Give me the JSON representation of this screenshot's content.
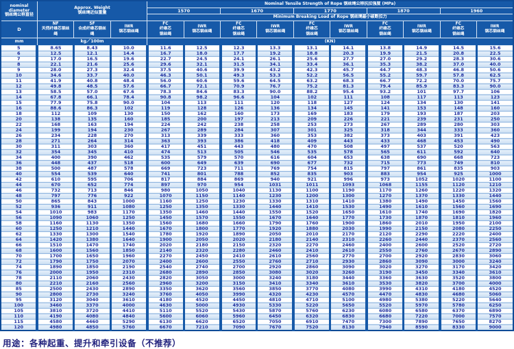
{
  "header": {
    "nominal_diameter": "nominal\ndiameter\n钢丝绳公称直径",
    "approx_weight": "Approx. Weight\n钢丝绳近似重量",
    "tensile_title": "Nominal Tensile Strength of Rope 钢丝绳公称抗拉强度 (MPa)",
    "breaking_title": "Minimum Breaking Load of Rope 钢丝绳最小破断拉力",
    "strengths": [
      "1570",
      "1670",
      "1770",
      "1870",
      "1960"
    ],
    "sub_columns": [
      {
        "en": "D",
        "cn": ""
      },
      {
        "en": "NF",
        "cn": "天然纤维芯钢丝\n绳"
      },
      {
        "en": "SF",
        "cn": "合成纤维芯钢丝\n绳"
      },
      {
        "en": "IWR",
        "cn": "钢芯钢丝绳"
      },
      {
        "en": "FC",
        "cn": "纤维芯\n钢丝绳"
      },
      {
        "en": "IWR",
        "cn": "钢芯钢丝绳"
      },
      {
        "en": "FC",
        "cn": "纤维芯\n钢丝绳"
      },
      {
        "en": "IWR",
        "cn": "钢芯钢丝绳"
      },
      {
        "en": "FC",
        "cn": "纤维芯\n钢丝绳"
      },
      {
        "en": "IWR",
        "cn": "钢芯钢丝绳"
      },
      {
        "en": "FC",
        "cn": "纤维芯\n钢丝绳"
      },
      {
        "en": "IWR",
        "cn": "钢芯钢丝绳"
      },
      {
        "en": "FC",
        "cn": "纤维芯\n钢丝绳"
      },
      {
        "en": "IWR",
        "cn": "钢芯钢丝绳"
      }
    ],
    "units": {
      "mm": "mm",
      "kg": "kg／100m",
      "kn": "(KN)"
    }
  },
  "colors": {
    "header_blue": "#1659A8",
    "frame_blue": "#0F4C97",
    "row_tint": "#C9DEF2",
    "value_text": "#1A2B9E",
    "footer_text": "#23237E"
  },
  "footer": {
    "usage": "用途：各种起重、提升和牵引设备（不推荐）"
  },
  "table": {
    "rows": [
      [
        "5",
        "8.65",
        "8.43",
        "10.0",
        "11.6",
        "12.5",
        "12.3",
        "13.3",
        "13.1",
        "14.1",
        "13.8",
        "14.9",
        "14.5",
        "15.6"
      ],
      [
        "6",
        "12.5",
        "12.1",
        "14.4",
        "16.7",
        "18.0",
        "17.7",
        "19.2",
        "18.8",
        "20.3",
        "19.9",
        "21.5",
        "20.8",
        "22.5"
      ],
      [
        "7",
        "17.0",
        "16.5",
        "19.6",
        "22.7",
        "24.5",
        "24.1",
        "26.1",
        "25.6",
        "27.7",
        "27.0",
        "29.2",
        "28.3",
        "30.6"
      ],
      [
        "8",
        "22.1",
        "21.6",
        "25.6",
        "29.6",
        "32.1",
        "31.5",
        "34.1",
        "33.4",
        "36.1",
        "35.3",
        "38.2",
        "37.0",
        "40.0"
      ],
      [
        "9",
        "28.0",
        "27.3",
        "32.4",
        "37.5",
        "40.6",
        "39.9",
        "43.2",
        "42.3",
        "45.7",
        "44.7",
        "48.3",
        "46.8",
        "50.6"
      ],
      [
        "10",
        "34.6",
        "33.7",
        "40.0",
        "46.3",
        "50.1",
        "49.3",
        "53.3",
        "52.2",
        "56.5",
        "55.2",
        "59.7",
        "57.8",
        "62.5"
      ],
      [
        "11",
        "41.9",
        "40.8",
        "48.4",
        "56.0",
        "60.6",
        "59.6",
        "64.5",
        "63.2",
        "68.3",
        "66.7",
        "72.2",
        "70.0",
        "75.7"
      ],
      [
        "12",
        "49.8",
        "48.5",
        "57.6",
        "66.7",
        "72.1",
        "70.9",
        "76.7",
        "75.2",
        "81.3",
        "79.4",
        "85.9",
        "83.3",
        "90.0"
      ],
      [
        "13",
        "58.5",
        "57.0",
        "67.6",
        "78.3",
        "84.6",
        "83.3",
        "90.0",
        "88.2",
        "95.4",
        "93.2",
        "101",
        "97.7",
        "106"
      ],
      [
        "14",
        "67.8",
        "66.1",
        "78.4",
        "90.8",
        "98.2",
        "96.6",
        "104",
        "102",
        "111",
        "108",
        "117",
        "113",
        "123"
      ],
      [
        "15",
        "77.9",
        "75.8",
        "90.0",
        "104",
        "113",
        "111",
        "120",
        "118",
        "127",
        "124",
        "134",
        "130",
        "141"
      ],
      [
        "16",
        "88.6",
        "86.3",
        "102",
        "119",
        "128",
        "126",
        "136",
        "134",
        "145",
        "141",
        "153",
        "148",
        "160"
      ],
      [
        "18",
        "112",
        "109",
        "130",
        "150",
        "162",
        "160",
        "173",
        "169",
        "183",
        "179",
        "193",
        "187",
        "203"
      ],
      [
        "20",
        "138",
        "135",
        "160",
        "185",
        "200",
        "197",
        "213",
        "209",
        "226",
        "221",
        "239",
        "231",
        "250"
      ],
      [
        "22",
        "168",
        "163",
        "194",
        "224",
        "242",
        "238",
        "258",
        "253",
        "273",
        "267",
        "289",
        "280",
        "303"
      ],
      [
        "24",
        "199",
        "194",
        "230",
        "267",
        "289",
        "284",
        "307",
        "301",
        "325",
        "318",
        "344",
        "333",
        "360"
      ],
      [
        "26",
        "234",
        "228",
        "270",
        "313",
        "339",
        "333",
        "360",
        "353",
        "382",
        "373",
        "403",
        "391",
        "423"
      ],
      [
        "28",
        "271",
        "264",
        "314",
        "363",
        "393",
        "386",
        "418",
        "409",
        "443",
        "433",
        "468",
        "453",
        "490"
      ],
      [
        "30",
        "311",
        "303",
        "360",
        "417",
        "451",
        "443",
        "480",
        "470",
        "508",
        "497",
        "537",
        "520",
        "563"
      ],
      [
        "32",
        "354",
        "345",
        "410",
        "474",
        "513",
        "505",
        "546",
        "535",
        "578",
        "565",
        "611",
        "592",
        "640"
      ],
      [
        "34",
        "400",
        "390",
        "462",
        "535",
        "579",
        "570",
        "616",
        "604",
        "653",
        "638",
        "690",
        "668",
        "723"
      ],
      [
        "36",
        "448",
        "437",
        "518",
        "600",
        "649",
        "639",
        "690",
        "677",
        "732",
        "715",
        "773",
        "749",
        "810"
      ],
      [
        "38",
        "500",
        "487",
        "578",
        "669",
        "723",
        "711",
        "769",
        "754",
        "815",
        "797",
        "861",
        "835",
        "903"
      ],
      [
        "40",
        "554",
        "539",
        "640",
        "741",
        "801",
        "788",
        "852",
        "835",
        "903",
        "883",
        "954",
        "925",
        "1000"
      ],
      [
        "42",
        "610",
        "595",
        "706",
        "817",
        "884",
        "869",
        "940",
        "921",
        "996",
        "973",
        "1052",
        "1020",
        "1100"
      ],
      [
        "44",
        "670",
        "652",
        "774",
        "897",
        "970",
        "954",
        "1031",
        "1011",
        "1093",
        "1068",
        "1155",
        "1120",
        "1210"
      ],
      [
        "46",
        "732",
        "713",
        "846",
        "980",
        "1050",
        "1040",
        "1130",
        "1100",
        "1190",
        "1170",
        "1260",
        "1220",
        "1320"
      ],
      [
        "48",
        "797",
        "776",
        "922",
        "1070",
        "1150",
        "1140",
        "1230",
        "1200",
        "1300",
        "1270",
        "1370",
        "1330",
        "1440"
      ],
      [
        "50",
        "865",
        "843",
        "1000",
        "1160",
        "1250",
        "1230",
        "1330",
        "1310",
        "1410",
        "1380",
        "1490",
        "1450",
        "1560"
      ],
      [
        "52",
        "936",
        "911",
        "1080",
        "1250",
        "1350",
        "1330",
        "1440",
        "1410",
        "1530",
        "1490",
        "1610",
        "1560",
        "1690"
      ],
      [
        "54",
        "1010",
        "983",
        "1170",
        "1350",
        "1460",
        "1440",
        "1550",
        "1520",
        "1650",
        "1610",
        "1740",
        "1690",
        "1820"
      ],
      [
        "56",
        "1090",
        "1060",
        "1250",
        "1450",
        "1570",
        "1550",
        "1670",
        "1640",
        "1770",
        "1730",
        "1870",
        "1810",
        "1960"
      ],
      [
        "58",
        "1160",
        "1130",
        "1350",
        "1560",
        "1680",
        "1660",
        "1790",
        "1760",
        "1900",
        "1860",
        "2010",
        "1950",
        "2100"
      ],
      [
        "60",
        "1250",
        "1210",
        "1440",
        "1670",
        "1800",
        "1770",
        "1920",
        "1880",
        "2030",
        "1990",
        "2150",
        "2080",
        "2250"
      ],
      [
        "62",
        "1330",
        "1300",
        "1540",
        "1780",
        "1920",
        "1890",
        "2050",
        "2010",
        "2170",
        "2120",
        "2290",
        "2220",
        "2400"
      ],
      [
        "64",
        "1420",
        "1380",
        "1640",
        "1900",
        "2050",
        "2020",
        "2180",
        "2140",
        "2310",
        "2260",
        "2440",
        "2370",
        "2560"
      ],
      [
        "66",
        "1510",
        "1470",
        "1740",
        "2020",
        "2180",
        "2150",
        "2320",
        "2270",
        "2460",
        "2400",
        "2600",
        "2520",
        "2720"
      ],
      [
        "68",
        "1600",
        "1560",
        "1850",
        "2140",
        "2320",
        "2280",
        "2460",
        "2410",
        "2610",
        "2550",
        "2760",
        "2670",
        "2890"
      ],
      [
        "70",
        "1700",
        "1650",
        "1960",
        "2270",
        "2450",
        "2410",
        "2610",
        "2560",
        "2770",
        "2700",
        "2920",
        "2830",
        "3060"
      ],
      [
        "72",
        "1790",
        "1750",
        "2070",
        "2400",
        "2600",
        "2550",
        "2760",
        "2710",
        "2930",
        "2860",
        "3090",
        "3000",
        "3240"
      ],
      [
        "74",
        "1890",
        "1850",
        "2190",
        "2540",
        "2740",
        "2700",
        "2920",
        "2860",
        "3090",
        "3020",
        "3270",
        "3170",
        "3420"
      ],
      [
        "76",
        "2000",
        "1950",
        "2310",
        "2680",
        "2890",
        "2850",
        "3080",
        "3020",
        "3260",
        "3190",
        "3450",
        "3340",
        "3610"
      ],
      [
        "78",
        "2110",
        "2060",
        "2430",
        "2820",
        "3050",
        "3000",
        "3240",
        "3180",
        "3440",
        "3360",
        "3630",
        "3520",
        "3800"
      ],
      [
        "80",
        "2210",
        "2160",
        "2560",
        "2960",
        "3200",
        "3150",
        "3410",
        "3340",
        "3610",
        "3530",
        "3820",
        "3700",
        "4000"
      ],
      [
        "85",
        "2500",
        "2430",
        "2890",
        "3350",
        "3620",
        "3560",
        "3850",
        "3770",
        "4080",
        "3990",
        "4310",
        "4180",
        "4520"
      ],
      [
        "90",
        "2800",
        "2730",
        "3240",
        "3760",
        "4050",
        "3990",
        "4320",
        "4230",
        "4570",
        "4470",
        "4830",
        "4680",
        "5060"
      ],
      [
        "95",
        "3120",
        "3040",
        "3610",
        "4180",
        "4520",
        "4450",
        "4810",
        "4710",
        "5100",
        "4980",
        "5380",
        "5220",
        "5640"
      ],
      [
        "100",
        "3460",
        "3370",
        "4000",
        "4630",
        "5000",
        "4930",
        "5330",
        "5220",
        "5650",
        "5520",
        "5970",
        "5780",
        "6250"
      ],
      [
        "105",
        "3810",
        "3720",
        "4410",
        "5110",
        "5520",
        "5430",
        "5870",
        "5760",
        "6230",
        "6080",
        "6580",
        "6370",
        "6890"
      ],
      [
        "110",
        "4190",
        "4080",
        "4840",
        "5600",
        "6060",
        "5960",
        "6450",
        "6320",
        "6830",
        "6680",
        "7220",
        "7000",
        "7570"
      ],
      [
        "115",
        "4580",
        "4460",
        "5290",
        "6130",
        "6620",
        "6520",
        "7050",
        "6910",
        "7470",
        "7300",
        "7890",
        "7650",
        "8270"
      ],
      [
        "120",
        "4980",
        "4850",
        "5760",
        "6670",
        "7210",
        "7090",
        "7670",
        "7520",
        "8130",
        "7940",
        "8590",
        "8330",
        "9000"
      ]
    ]
  }
}
